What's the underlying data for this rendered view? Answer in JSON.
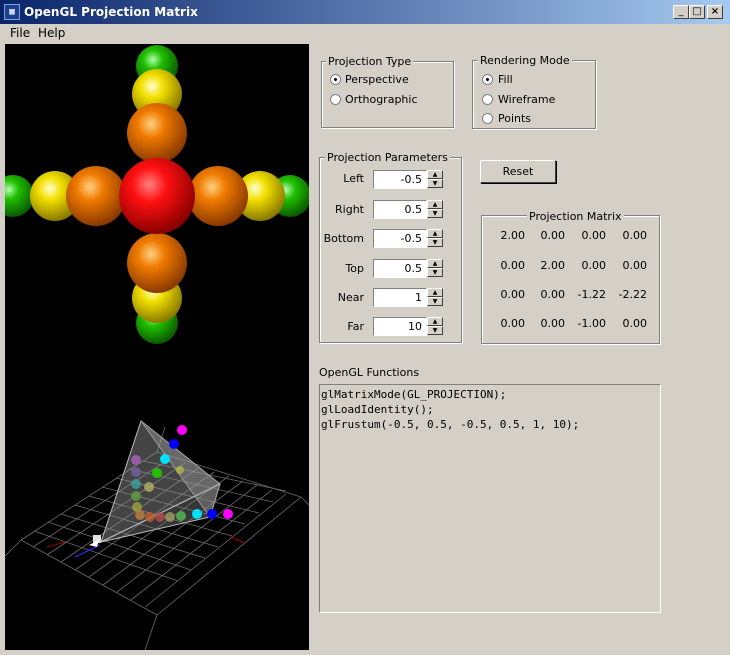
{
  "window": {
    "title": "OpenGL Projection Matrix",
    "app_icon": "gl-app-icon",
    "controls": [
      "minimize-icon",
      "maximize-icon",
      "close-icon"
    ]
  },
  "menu": {
    "items": [
      {
        "label": "File"
      },
      {
        "label": "Help"
      }
    ]
  },
  "projection_type": {
    "title": "Projection Type",
    "options": [
      {
        "label": "Perspective",
        "selected": true
      },
      {
        "label": "Orthographic",
        "selected": false
      }
    ]
  },
  "rendering_mode": {
    "title": "Rendering Mode",
    "options": [
      {
        "label": "Fill",
        "selected": true
      },
      {
        "label": "Wireframe",
        "selected": false
      },
      {
        "label": "Points",
        "selected": false
      }
    ]
  },
  "projection_params": {
    "title": "Projection Parameters",
    "fields": [
      {
        "label": "Left",
        "value": "-0.5"
      },
      {
        "label": "Right",
        "value": "0.5"
      },
      {
        "label": "Bottom",
        "value": "-0.5"
      },
      {
        "label": "Top",
        "value": "0.5"
      },
      {
        "label": "Near",
        "value": "1"
      },
      {
        "label": "Far",
        "value": "10"
      }
    ]
  },
  "reset_button": {
    "label": "Reset"
  },
  "projection_matrix": {
    "title": "Projection Matrix",
    "rows": [
      [
        "2.00",
        "0.00",
        "0.00",
        "0.00"
      ],
      [
        "0.00",
        "2.00",
        "0.00",
        "0.00"
      ],
      [
        "0.00",
        "0.00",
        "-1.22",
        "-2.22"
      ],
      [
        "0.00",
        "0.00",
        "-1.00",
        "0.00"
      ]
    ]
  },
  "opengl_functions": {
    "title": "OpenGL Functions",
    "lines": [
      "glMatrixMode(GL_PROJECTION);",
      "glLoadIdentity();",
      "glFrustum(-0.5, 0.5, -0.5, 0.5, 1, 10);"
    ]
  },
  "colors": {
    "titlebar_start": "#0a246a",
    "titlebar_end": "#a6caf0",
    "window_bg": "#d4d0c8",
    "viewport_bg": "#000000",
    "sphere_red": "#e00000",
    "sphere_orange": "#f07a00",
    "sphere_yellow": "#f2e000",
    "sphere_green": "#20c000",
    "sphere_cyan": "#00e0ff",
    "sphere_blue": "#0000ff",
    "sphere_magenta": "#ff00ff"
  }
}
